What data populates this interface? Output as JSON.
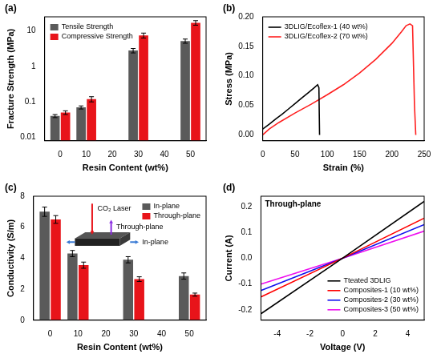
{
  "chart_data": [
    {
      "panel": "(a)",
      "type": "bar",
      "x_label": "Resin Content (wt%)",
      "y_label": "Fracture Strength (MPa)",
      "x": [
        0,
        10,
        30,
        50
      ],
      "series": [
        {
          "name": "Tensile Strength",
          "color": "#5a5a5a",
          "values": [
            0.04,
            0.07,
            2.8,
            5.2
          ],
          "errors": [
            0.004,
            0.007,
            0.4,
            0.7
          ]
        },
        {
          "name": "Compressive Strength",
          "color": "#e8141a",
          "values": [
            0.05,
            0.12,
            7.5,
            17
          ],
          "errors": [
            0.006,
            0.02,
            1.2,
            2.5
          ]
        }
      ],
      "xlim": [
        -6,
        56
      ],
      "xticks": [
        0,
        10,
        20,
        30,
        40,
        50
      ],
      "ylim": [
        0.008,
        25
      ],
      "yticks": [
        0.01,
        0.1,
        1,
        10
      ],
      "log": "y",
      "grid": false,
      "legend": "upper left"
    },
    {
      "panel": "(b)",
      "type": "line",
      "x_label": "Strain (%)",
      "y_label": "Stress (MPa)",
      "series": [
        {
          "name": "3DLIG/Ecoflex-1 (40 wt%)",
          "color": "#000000",
          "x": [
            0,
            10,
            20,
            30,
            40,
            50,
            60,
            70,
            80,
            85,
            87,
            88
          ],
          "values": [
            0.01,
            0.018,
            0.027,
            0.035,
            0.044,
            0.053,
            0.062,
            0.071,
            0.08,
            0.085,
            0.08,
            0.0
          ]
        },
        {
          "name": "3DLIG/Ecoflex-2 (70 wt%)",
          "color": "#ff2020",
          "x": [
            0,
            10,
            25,
            50,
            75,
            100,
            125,
            150,
            175,
            200,
            215,
            222,
            228,
            232,
            235,
            237
          ],
          "values": [
            0.0,
            0.01,
            0.021,
            0.037,
            0.052,
            0.068,
            0.085,
            0.105,
            0.128,
            0.155,
            0.175,
            0.185,
            0.188,
            0.185,
            0.05,
            0.0
          ]
        }
      ],
      "xlim": [
        0,
        250
      ],
      "xticks": [
        0,
        50,
        100,
        150,
        200,
        250
      ],
      "ylim": [
        -0.01,
        0.2
      ],
      "yticks": [
        {
          "value": 0,
          "label": "0.00"
        },
        {
          "value": 0.05,
          "label": "0.05"
        },
        {
          "value": 0.1,
          "label": "0.10"
        },
        {
          "value": 0.15,
          "label": "0.15"
        },
        {
          "value": 0.2,
          "label": "0.20"
        }
      ],
      "grid": false,
      "legend": "upper left"
    },
    {
      "panel": "(c)",
      "type": "bar",
      "x_label": "Resin Content (wt%)",
      "y_label": "Conductivity (S/m)",
      "x": [
        0,
        10,
        30,
        50
      ],
      "series": [
        {
          "name": "In-plane",
          "color": "#5a5a5a",
          "values": [
            7.0,
            4.3,
            3.9,
            2.85
          ],
          "errors": [
            0.3,
            0.2,
            0.2,
            0.2
          ]
        },
        {
          "name": "Through-plane",
          "color": "#e8141a",
          "values": [
            6.5,
            3.55,
            2.65,
            1.65
          ],
          "errors": [
            0.25,
            0.2,
            0.15,
            0.1
          ]
        }
      ],
      "inset_labels": [
        "CO₂ Laser",
        "Through-plane",
        "In-plane"
      ],
      "xlim": [
        -6,
        56
      ],
      "xticks": [
        0,
        10,
        20,
        30,
        40,
        50
      ],
      "ylim": [
        0,
        8
      ],
      "yticks": [
        0,
        2,
        4,
        6,
        8
      ],
      "grid": false,
      "legend": "upper right"
    },
    {
      "panel": "(d)",
      "type": "line",
      "title": "Through-plane",
      "x_label": "Voltage (V)",
      "y_label": "Current (A)",
      "x": [
        -5,
        0,
        5
      ],
      "series": [
        {
          "name": "Tteated 3DLIG",
          "color": "#000000",
          "values": [
            -0.215,
            0.0,
            0.22
          ]
        },
        {
          "name": "Composites-1 (10 wt%)",
          "color": "#ff0000",
          "values": [
            -0.15,
            0.0,
            0.155
          ]
        },
        {
          "name": "Composites-2 (30 wt%)",
          "color": "#1010ee",
          "values": [
            -0.125,
            0.0,
            0.13
          ]
        },
        {
          "name": "Composites-3 (50 wt%)",
          "color": "#ee10ee",
          "values": [
            -0.1,
            0.0,
            0.105
          ]
        }
      ],
      "xlim": [
        -5,
        5
      ],
      "xticks": [
        -4,
        -2,
        0,
        2,
        4
      ],
      "ylim": [
        -0.24,
        0.24
      ],
      "yticks": [
        -0.2,
        -0.1,
        {
          "value": 0,
          "label": "0.0"
        },
        0.1,
        0.2
      ],
      "grid": false,
      "legend": "lower right"
    }
  ]
}
